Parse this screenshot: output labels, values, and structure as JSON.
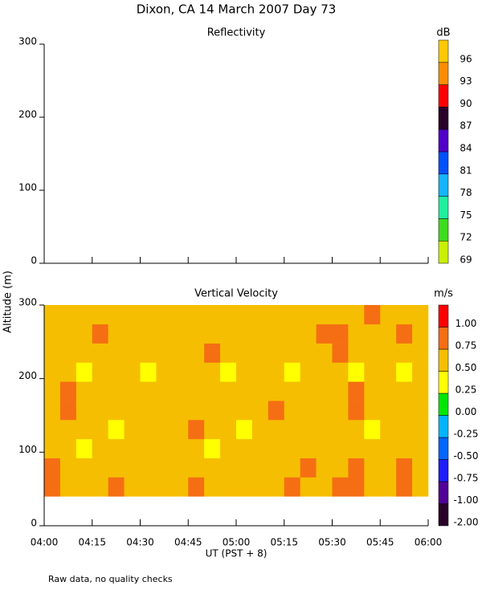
{
  "figure": {
    "title": "Dixon, CA 14 March 2007  Day  73",
    "ylabel": "Altitude (m)",
    "xlabel": "UT  (PST + 8)",
    "note": "Raw data, no quality checks"
  },
  "chart_data": [
    {
      "type": "heatmap",
      "title": "Reflectivity",
      "ylim": [
        0,
        300
      ],
      "yticks": [
        0,
        100,
        200,
        300
      ],
      "colorbar": {
        "label": "dB",
        "ticks": [
          69,
          72,
          75,
          78,
          81,
          84,
          87,
          90,
          93,
          96
        ],
        "colors": [
          "#c8f000",
          "#3cdc1e",
          "#1ef0a0",
          "#14b4ff",
          "#0050ff",
          "#5000c8",
          "#280028",
          "#ff0000",
          "#ff8c00",
          "#ffc800"
        ]
      }
    },
    {
      "type": "heatmap",
      "title": "Vertical Velocity",
      "ylim": [
        0,
        300
      ],
      "yticks": [
        0,
        100,
        200,
        300
      ],
      "xlim": [
        240,
        360
      ],
      "xticks": [
        {
          "value": 240,
          "label": "04:00"
        },
        {
          "value": 255,
          "label": "04:15"
        },
        {
          "value": 270,
          "label": "04:30"
        },
        {
          "value": 285,
          "label": "04:45"
        },
        {
          "value": 300,
          "label": "05:00"
        },
        {
          "value": 315,
          "label": "05:15"
        },
        {
          "value": 330,
          "label": "05:30"
        },
        {
          "value": 345,
          "label": "05:45"
        },
        {
          "value": 360,
          "label": "06:00"
        }
      ],
      "colorbar": {
        "label": "m/s",
        "ticks": [
          {
            "value": -2,
            "label": "-2.00"
          },
          {
            "value": -1,
            "label": "-1.00"
          },
          {
            "value": -0.75,
            "label": "-0.75"
          },
          {
            "value": -0.5,
            "label": "-0.50"
          },
          {
            "value": -0.25,
            "label": "-0.25"
          },
          {
            "value": 0,
            "label": "0.00"
          },
          {
            "value": 0.25,
            "label": "0.25"
          },
          {
            "value": 0.5,
            "label": "0.50"
          },
          {
            "value": 0.75,
            "label": "0.75"
          },
          {
            "value": 1,
            "label": "1.00"
          }
        ],
        "colors": [
          "#280028",
          "#500096",
          "#1e1eff",
          "#0064ff",
          "#00b4ff",
          "#00e600",
          "#ffff00",
          "#f5be00",
          "#f56e14",
          "#ff0000"
        ]
      },
      "x_bins": [
        240,
        245,
        250,
        255,
        260,
        265,
        270,
        275,
        280,
        285,
        290,
        295,
        300,
        305,
        310,
        315,
        320,
        325,
        330,
        335,
        340,
        345,
        350,
        355,
        360
      ],
      "y_bins": [
        40,
        66,
        92,
        118,
        144,
        170,
        196,
        222,
        248,
        274,
        300
      ],
      "z": [
        [
          0.8,
          0.65,
          0.7,
          0.6,
          0.8,
          0.65,
          0.6,
          0.7,
          0.65,
          0.8,
          0.6,
          0.65,
          0.7,
          0.6,
          0.65,
          0.8,
          0.7,
          0.65,
          0.8,
          0.85,
          0.7,
          0.65,
          0.8,
          0.7
        ],
        [
          0.85,
          0.7,
          0.65,
          0.6,
          0.7,
          0.6,
          0.65,
          0.6,
          0.7,
          0.65,
          0.6,
          0.7,
          0.65,
          0.6,
          0.7,
          0.65,
          0.8,
          0.6,
          0.7,
          0.8,
          0.65,
          0.7,
          0.85,
          0.6
        ],
        [
          0.6,
          0.65,
          0.4,
          0.7,
          0.6,
          0.65,
          0.7,
          0.6,
          0.65,
          0.6,
          0.4,
          0.65,
          0.6,
          0.7,
          0.6,
          0.65,
          0.6,
          0.7,
          0.65,
          0.6,
          0.7,
          0.6,
          0.65,
          0.7
        ],
        [
          0.65,
          0.6,
          0.7,
          0.65,
          0.4,
          0.6,
          0.65,
          0.7,
          0.6,
          0.8,
          0.65,
          0.6,
          0.4,
          0.65,
          0.6,
          0.7,
          0.65,
          0.6,
          0.6,
          0.65,
          0.4,
          0.6,
          0.7,
          0.65
        ],
        [
          0.7,
          0.8,
          0.65,
          0.6,
          0.65,
          0.7,
          0.6,
          0.65,
          0.7,
          0.6,
          0.65,
          0.7,
          0.6,
          0.65,
          0.8,
          0.6,
          0.65,
          0.7,
          0.6,
          0.8,
          0.65,
          0.6,
          0.65,
          0.6
        ],
        [
          0.6,
          0.85,
          0.7,
          0.65,
          0.6,
          0.65,
          0.7,
          0.6,
          0.65,
          0.7,
          0.6,
          0.65,
          0.7,
          0.6,
          0.65,
          0.7,
          0.6,
          0.65,
          0.6,
          0.85,
          0.6,
          0.65,
          0.7,
          0.6
        ],
        [
          0.65,
          0.6,
          0.4,
          0.6,
          0.65,
          0.6,
          0.4,
          0.65,
          0.6,
          0.65,
          0.6,
          0.4,
          0.65,
          0.6,
          0.65,
          0.4,
          0.6,
          0.65,
          0.6,
          0.4,
          0.65,
          0.6,
          0.4,
          0.65
        ],
        [
          0.6,
          0.7,
          0.65,
          0.6,
          0.7,
          0.65,
          0.6,
          0.65,
          0.7,
          0.6,
          0.8,
          0.65,
          0.6,
          0.65,
          0.7,
          0.6,
          0.65,
          0.7,
          0.8,
          0.6,
          0.65,
          0.7,
          0.6,
          0.65
        ],
        [
          0.65,
          0.6,
          0.7,
          0.8,
          0.6,
          0.65,
          0.6,
          0.7,
          0.65,
          0.6,
          0.65,
          0.6,
          0.7,
          0.6,
          0.65,
          0.6,
          0.7,
          0.8,
          0.85,
          0.7,
          0.6,
          0.65,
          0.8,
          0.6
        ],
        [
          0.6,
          0.65,
          0.6,
          0.7,
          0.65,
          0.6,
          0.65,
          0.6,
          0.65,
          0.7,
          0.6,
          0.65,
          0.6,
          0.65,
          0.6,
          0.7,
          0.65,
          0.6,
          0.7,
          0.65,
          0.8,
          0.6,
          0.65,
          0.6
        ]
      ]
    }
  ]
}
